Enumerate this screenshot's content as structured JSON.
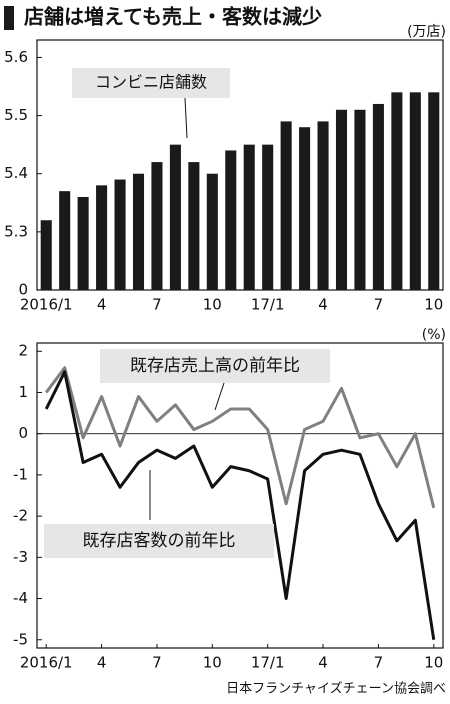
{
  "title": "店舗は増えても売上・客数は減少",
  "source": "日本フランチャイズチェーン協会調べ",
  "chart_data": [
    {
      "type": "bar",
      "unit": "(万店)",
      "annotation": "コンビニ店舗数",
      "categories": [
        "2016/1",
        null,
        null,
        "4",
        null,
        null,
        "7",
        null,
        null,
        "10",
        null,
        null,
        "17/1",
        null,
        null,
        "4",
        null,
        null,
        "7",
        null,
        null,
        "10"
      ],
      "values": [
        5.32,
        5.37,
        5.36,
        5.38,
        5.39,
        5.4,
        5.42,
        5.45,
        5.42,
        5.4,
        5.44,
        5.45,
        5.45,
        5.49,
        5.48,
        5.49,
        5.51,
        5.51,
        5.52,
        5.54,
        5.54,
        5.54
      ],
      "color": "#1a1a1a",
      "ylim": [
        0,
        5.63
      ],
      "axis_break": [
        0,
        5.2
      ],
      "yticks": [
        0,
        5.3,
        5.4,
        5.5,
        5.6
      ]
    },
    {
      "type": "line",
      "unit": "(%)",
      "categories": [
        "2016/1",
        null,
        null,
        "4",
        null,
        null,
        "7",
        null,
        null,
        "10",
        null,
        null,
        "17/1",
        null,
        null,
        "4",
        null,
        null,
        "7",
        null,
        null,
        "10"
      ],
      "series": [
        {
          "name": "既存店売上高の前年比",
          "color": "#808080",
          "values": [
            1.0,
            1.6,
            -0.1,
            0.9,
            -0.3,
            0.9,
            0.3,
            0.7,
            0.1,
            0.3,
            0.6,
            0.6,
            0.1,
            -1.7,
            0.1,
            0.3,
            1.1,
            -0.1,
            0.0,
            -0.8,
            0.0,
            -1.8
          ]
        },
        {
          "name": "既存店客数の前年比",
          "color": "#111111",
          "values": [
            0.6,
            1.5,
            -0.7,
            -0.5,
            -1.3,
            -0.7,
            -0.4,
            -0.6,
            -0.3,
            -1.3,
            -0.8,
            -0.9,
            -1.1,
            -4.0,
            -0.9,
            -0.5,
            -0.4,
            -0.5,
            -1.7,
            -2.6,
            -2.1,
            -5.0
          ]
        }
      ],
      "ylim": [
        -5.2,
        2.2
      ],
      "yticks": [
        2,
        1,
        0,
        -1,
        -2,
        -3,
        -4,
        -5
      ]
    }
  ]
}
